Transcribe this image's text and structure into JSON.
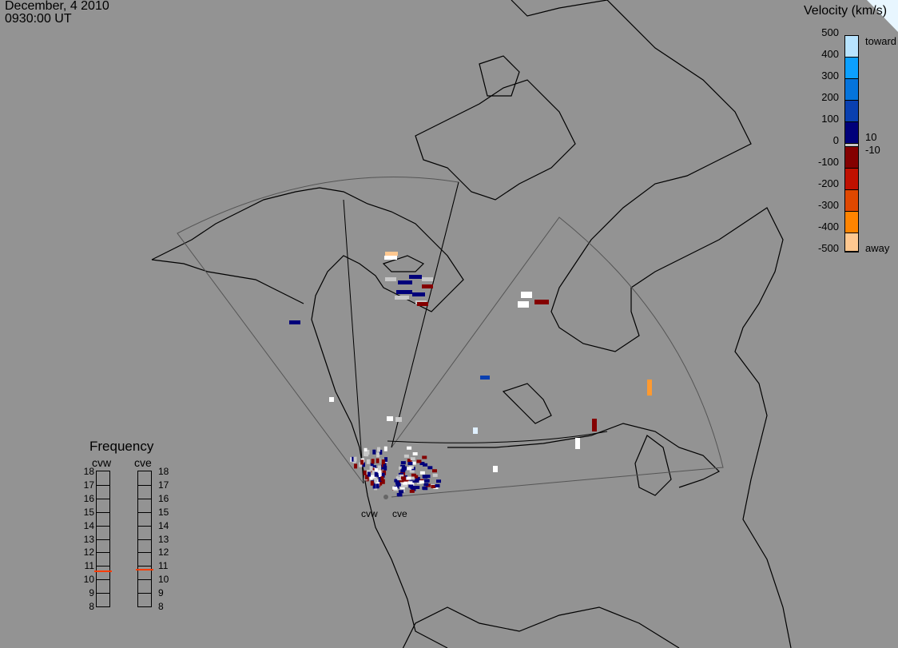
{
  "header": {
    "date": "December, 4 2010",
    "time": "0930:00 UT"
  },
  "colorbar": {
    "title": "Velocity (km/s)",
    "ticks": [
      "500",
      "400",
      "300",
      "200",
      "100",
      "0",
      "-100",
      "-200",
      "-300",
      "-400",
      "-500"
    ],
    "inner_labels": [
      "10",
      "-10"
    ],
    "toward_label": "toward",
    "away_label": "away",
    "colors": [
      "#b8e4ff",
      "#0ca0ff",
      "#0474dc",
      "#0a40b0",
      "#00007a",
      "#c8c8c8",
      "#840000",
      "#c01000",
      "#e04800",
      "#ff8400",
      "#ffc890"
    ]
  },
  "frequency": {
    "title": "Frequency",
    "scale": [
      "18",
      "17",
      "16",
      "15",
      "14",
      "13",
      "12",
      "11",
      "10",
      "9",
      "8"
    ],
    "radars": [
      {
        "name": "cvw",
        "mhz": 10.6
      },
      {
        "name": "cve",
        "mhz": 10.7
      }
    ],
    "marker_color": "#ff3c00"
  },
  "radars": {
    "west": "cvw",
    "east": "cve"
  }
}
